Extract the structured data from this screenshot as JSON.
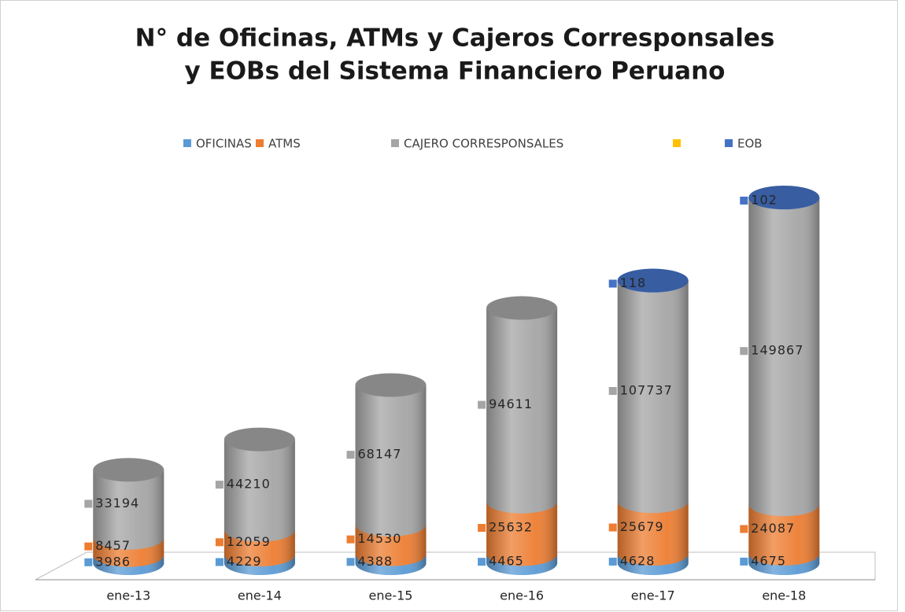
{
  "chart_data": {
    "type": "bar",
    "stacked": true,
    "title": [
      "N° de Oficinas, ATMs y  Cajeros Corresponsales",
      "y EOBs del Sistema Financiero Peruano"
    ],
    "categories": [
      "ene-13",
      "ene-14",
      "ene-15",
      "ene-16",
      "ene-17",
      "ene-18"
    ],
    "series": [
      {
        "name": "OFICINAS",
        "color": "#5b9bd5",
        "values": [
          3986,
          4229,
          4388,
          4465,
          4628,
          4675
        ]
      },
      {
        "name": "ATMS",
        "color": "#ed7d31",
        "values": [
          8457,
          12059,
          14530,
          25632,
          25679,
          24087
        ]
      },
      {
        "name": "CAJERO CORRESPONSALES",
        "color": "#a5a5a5",
        "values": [
          33194,
          44210,
          68147,
          94611,
          107737,
          149867
        ]
      },
      {
        "name": "EOB",
        "color": "#4472c4",
        "values": [
          null,
          null,
          null,
          null,
          118,
          102
        ]
      }
    ],
    "legend": "top",
    "data_labels": true
  }
}
